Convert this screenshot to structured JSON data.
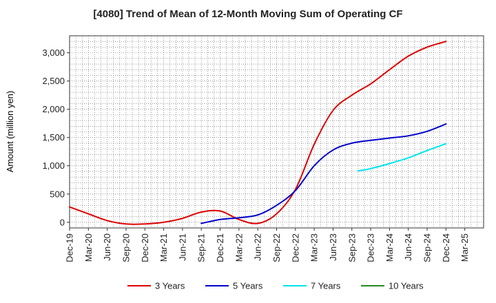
{
  "chart_data": {
    "type": "line",
    "title": "[4080]  Trend of Mean of 12-Month Moving Sum of Operating CF",
    "xlabel": "",
    "ylabel": "Amount (million yen)",
    "ylim": [
      -100,
      3300
    ],
    "yticks": [
      0,
      500,
      1000,
      1500,
      2000,
      2500,
      3000
    ],
    "ytick_labels": [
      "0",
      "500",
      "1,000",
      "1,500",
      "2,000",
      "2,500",
      "3,000"
    ],
    "xlim": [
      0,
      66
    ],
    "x_tick_labels": [
      "Dec-19",
      "Mar-20",
      "Jun-20",
      "Sep-20",
      "Dec-20",
      "Mar-21",
      "Jun-21",
      "Sep-21",
      "Dec-21",
      "Mar-22",
      "Jun-22",
      "Sep-22",
      "Dec-22",
      "Mar-23",
      "Jun-23",
      "Sep-23",
      "Dec-23",
      "Mar-24",
      "Jun-24",
      "Sep-24",
      "Dec-24",
      "Mar-25"
    ],
    "x_unit": "months since Dec-19",
    "legend_position": "bottom",
    "grid": true,
    "series": [
      {
        "name": "3 Years",
        "color": "#dd0000",
        "x": [
          0,
          3,
          6,
          9,
          12,
          15,
          18,
          21,
          24,
          27,
          30,
          33,
          36,
          39,
          42,
          45,
          48,
          51,
          54,
          57,
          60
        ],
        "y": [
          270,
          150,
          30,
          -30,
          -30,
          0,
          70,
          180,
          200,
          50,
          -20,
          150,
          580,
          1380,
          1980,
          2250,
          2450,
          2700,
          2940,
          3100,
          3200
        ]
      },
      {
        "name": "5 Years",
        "color": "#0000cc",
        "x": [
          21,
          24,
          27,
          30,
          33,
          36,
          39,
          42,
          45,
          48,
          51,
          54,
          57,
          60
        ],
        "y": [
          -20,
          50,
          80,
          130,
          300,
          560,
          1000,
          1280,
          1400,
          1450,
          1490,
          1530,
          1610,
          1740
        ]
      },
      {
        "name": "7 Years",
        "color": "#00e5ee",
        "x": [
          46,
          48,
          51,
          54,
          57,
          60
        ],
        "y": [
          910,
          950,
          1040,
          1140,
          1270,
          1390
        ]
      },
      {
        "name": "10 Years",
        "color": "#228b22",
        "x": [],
        "y": []
      }
    ]
  }
}
